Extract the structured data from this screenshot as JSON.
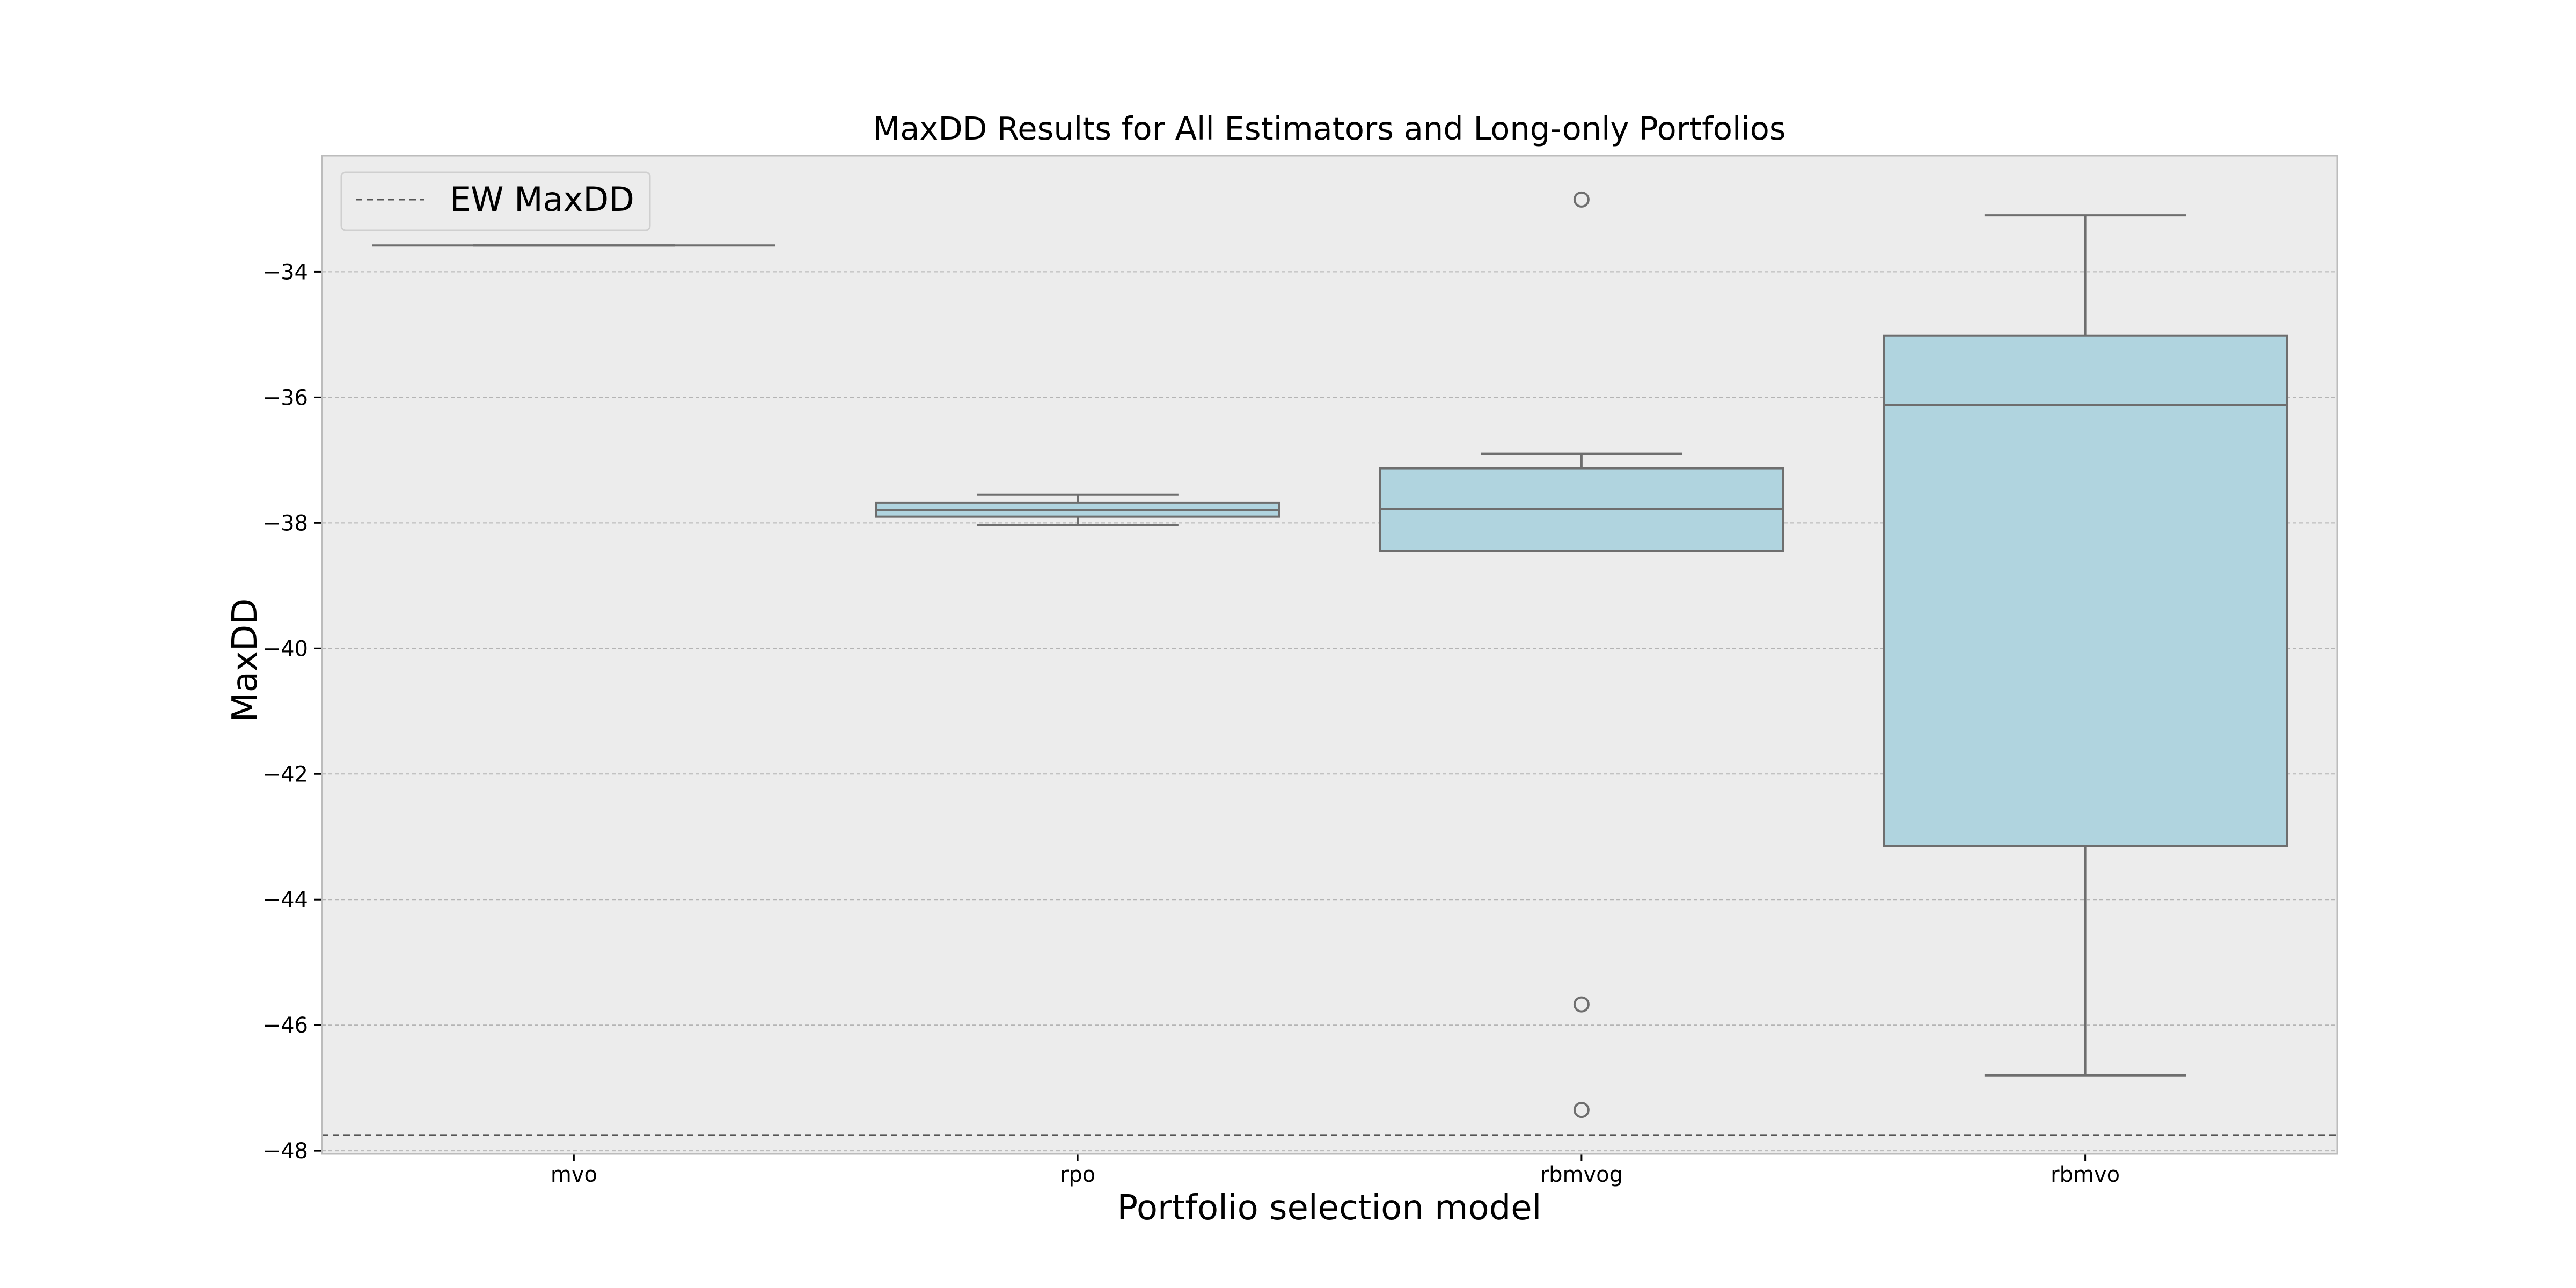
{
  "chart_data": {
    "type": "box",
    "title": "MaxDD Results for All Estimators and Long-only Portfolios",
    "xlabel": "Portfolio selection model",
    "ylabel": "MaxDD",
    "ylim": [
      -48.05,
      -32.15
    ],
    "yticks": [
      -34,
      -36,
      -38,
      -40,
      -42,
      -44,
      -46,
      -48
    ],
    "ytick_labels": [
      "−34",
      "−36",
      "−38",
      "−40",
      "−42",
      "−44",
      "−46",
      "−48"
    ],
    "grid": true,
    "legend_position": "top-left",
    "categories": [
      "mvo",
      "rpo",
      "rbmvog",
      "rbmvo"
    ],
    "boxes": [
      {
        "category": "mvo",
        "whisker_low": -33.58,
        "q1": -33.58,
        "median": -33.58,
        "q3": -33.58,
        "whisker_high": -33.58,
        "outliers": []
      },
      {
        "category": "rpo",
        "whisker_low": -38.04,
        "q1": -37.9,
        "median": -37.8,
        "q3": -37.68,
        "whisker_high": -37.55,
        "outliers": []
      },
      {
        "category": "rbmvog",
        "whisker_low": -38.45,
        "q1": -38.45,
        "median": -37.78,
        "q3": -37.13,
        "whisker_high": -36.9,
        "outliers": [
          -32.85,
          -45.67,
          -47.35
        ]
      },
      {
        "category": "rbmvo",
        "whisker_low": -46.8,
        "q1": -43.15,
        "median": -36.12,
        "q3": -35.02,
        "whisker_high": -33.1,
        "outliers": []
      }
    ],
    "reference_lines": [
      {
        "name": "EW MaxDD",
        "value": -47.75,
        "style": "dashed"
      }
    ],
    "colors": {
      "box_fill": "#b0d4df",
      "box_edge": "#6e6e6e",
      "plot_bg": "#ececec",
      "grid": "#b4b4b4",
      "reference_line": "#555555"
    }
  }
}
